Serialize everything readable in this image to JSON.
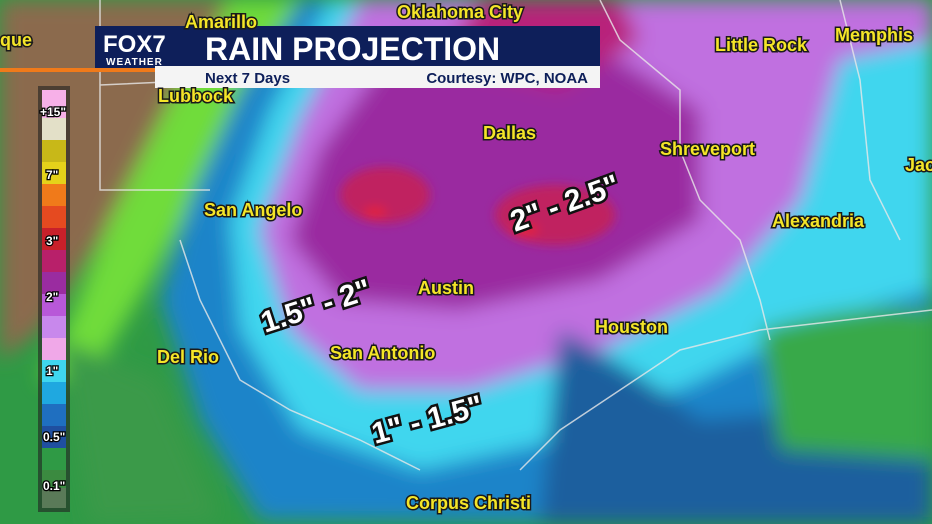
{
  "header": {
    "logo": "FOX7",
    "logo_sub": "WEATHER",
    "title": "RAIN PROJECTION",
    "subtitle": "Next 7 Days",
    "credit": "Courtesy: WPC, NOAA"
  },
  "cities": [
    "que",
    "Amarillo",
    "Oklahoma City",
    "Little Rock",
    "Memphis",
    "Lubbock",
    "Dallas",
    "Shreveport",
    "Jac",
    "San Angelo",
    "Alexandria",
    "Austin",
    "Houston",
    "Del Rio",
    "San Antonio",
    "Corpus Christi"
  ],
  "annotations": [
    "2\" - 2.5\"",
    "1.5\" - 2\"",
    "1\" - 1.5\""
  ],
  "legend": {
    "labels": [
      "+15\"",
      "7\"",
      "3\"",
      "2\"",
      "1\"",
      "0.5\"",
      "0.1\""
    ]
  }
}
